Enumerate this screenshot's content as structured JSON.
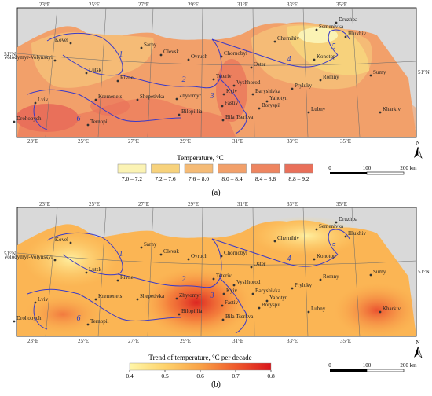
{
  "panel_a": {
    "label": "(a)",
    "legend": {
      "title": "Temperature, °C",
      "classes": [
        {
          "label": "7.0 – 7.2",
          "color": "#fbf3b4"
        },
        {
          "label": "7.2 – 7.6",
          "color": "#f7d27c"
        },
        {
          "label": "7.6 – 8.0",
          "color": "#f5bb76"
        },
        {
          "label": "8.0 – 8.4",
          "color": "#f2a06a"
        },
        {
          "label": "8.4 – 8.8",
          "color": "#ee8560"
        },
        {
          "label": "8.8 – 9.2",
          "color": "#e9705a"
        }
      ]
    }
  },
  "panel_b": {
    "label": "(b)",
    "legend": {
      "title": "Trend of temperature, °C per decade",
      "ticks": [
        "0.4",
        "0.5",
        "0.6",
        "0.7",
        "0.8"
      ],
      "ramp": [
        "#fff6a8",
        "#fed36c",
        "#f9a247",
        "#ef5b2c",
        "#d9161c"
      ]
    }
  },
  "graticule": {
    "top": [
      "23°E",
      "25°E",
      "27°E",
      "29°E",
      "31°E",
      "33°E",
      "35°E"
    ],
    "bottom": [
      "23°E",
      "25°E",
      "27°E",
      "29°E",
      "31°E",
      "33°E",
      "35°E"
    ],
    "lat_left": "51°N",
    "lat_right": "51°N"
  },
  "cities": [
    "Kovel",
    "Volodymyr-Volynskyi",
    "Sarny",
    "Olevsk",
    "Ovruch",
    "Chornobyl",
    "Chernihiv",
    "Semenivka",
    "Druzhba",
    "Hlukhiv",
    "Konotop",
    "Sumy",
    "Lutsk",
    "Rivne",
    "Teteriv",
    "Vyshhorod",
    "Oster",
    "Pryluky",
    "Romny",
    "Kyiv",
    "Baryshivka",
    "Yahotyn",
    "Boryspil",
    "Fastiv",
    "Zhytomyr",
    "Kremenets",
    "Shepetivka",
    "Lviv",
    "Drohobych",
    "Ternopil",
    "Bilopillia",
    "Bila Tserkva",
    "Lubny",
    "Kharkiv"
  ],
  "regions": [
    "1",
    "2",
    "3",
    "4",
    "5",
    "6"
  ],
  "scalebar": {
    "ticks": [
      "0",
      "100",
      "200 km"
    ]
  },
  "north": "N"
}
